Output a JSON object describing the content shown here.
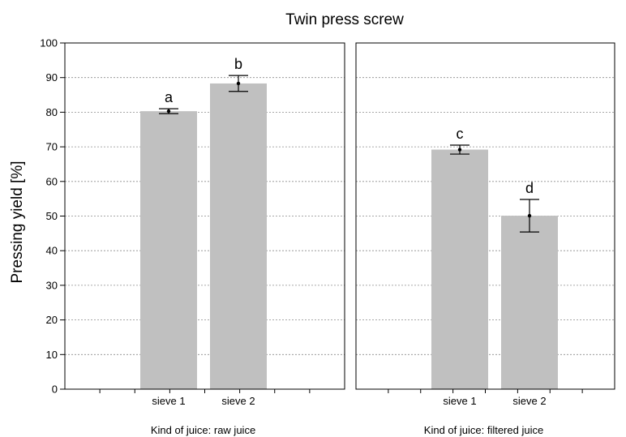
{
  "chart_data": {
    "type": "bar",
    "title": "Twin press screw",
    "ylabel": "Pressing yield [%]",
    "ylim": [
      0,
      100
    ],
    "yticks": [
      0,
      10,
      20,
      30,
      40,
      50,
      60,
      70,
      80,
      90,
      100
    ],
    "grid": true,
    "bar_color": "#c0c0c0",
    "panels": [
      {
        "label": "Kind of juice: raw juice",
        "categories": [
          "sieve 1",
          "sieve 2"
        ],
        "values": [
          80.3,
          88.3
        ],
        "err_low": [
          79.6,
          86.0
        ],
        "err_high": [
          81.0,
          90.6
        ],
        "letters": [
          "a",
          "b"
        ]
      },
      {
        "label": "Kind of juice: filtered juice",
        "categories": [
          "sieve 1",
          "sieve 2"
        ],
        "values": [
          69.2,
          50.1
        ],
        "err_low": [
          67.9,
          45.4
        ],
        "err_high": [
          70.5,
          54.8
        ],
        "letters": [
          "c",
          "d"
        ]
      }
    ]
  }
}
